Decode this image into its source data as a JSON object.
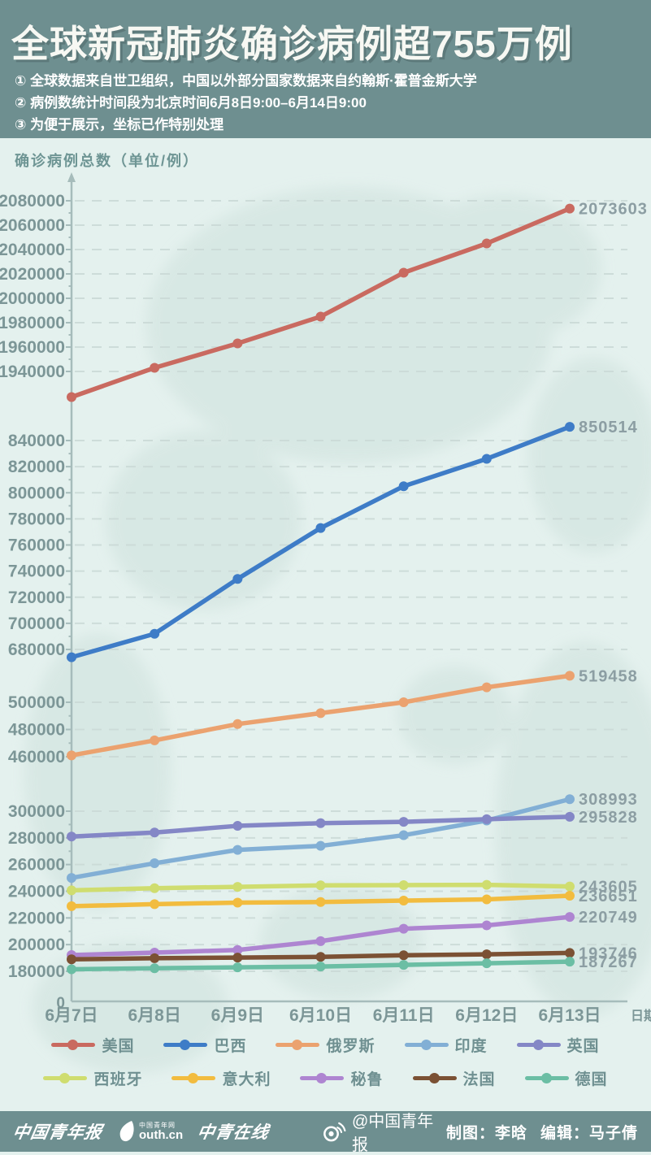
{
  "header": {
    "title": "全球新冠肺炎确诊病例超755万例",
    "notes": [
      "① 全球数据来自世卫组织，中国以外部分国家数据来自约翰斯·霍普金斯大学",
      "② 病例数统计时间段为北京时间6月8日9:00–6月14日9:00",
      "③ 为便于展示，坐标已作特别处理"
    ]
  },
  "chart": {
    "y_axis_title": "确诊病例总数（单位/例）",
    "x_axis_title": "日期",
    "origin_label": "0"
  },
  "chart_data": {
    "type": "line",
    "title": "全球新冠肺炎确诊病例超755万例",
    "x": [
      "6月7日",
      "6月8日",
      "6月9日",
      "6月10日",
      "6月11日",
      "6月12日",
      "6月13日"
    ],
    "xlabel": "日期",
    "ylabel": "确诊病例总数（单位/例）",
    "grid": true,
    "legend_position": "bottom",
    "y_axis_note": "broken compressed axis (坐标已作特别处理)",
    "y_ticks": [
      [
        2080000,
        2060000,
        2040000,
        2020000,
        2000000,
        1980000,
        1960000,
        1940000
      ],
      [
        840000,
        820000,
        800000,
        780000,
        760000,
        740000,
        720000,
        700000,
        680000
      ],
      [
        500000,
        480000,
        460000
      ],
      [
        300000,
        280000,
        260000,
        240000,
        220000,
        200000,
        180000
      ]
    ],
    "series": [
      {
        "name": "美国",
        "color": "#C96A60",
        "end_label": "2073603",
        "values": [
          1919000,
          1943000,
          1963000,
          1985000,
          2021000,
          2045000,
          2073603
        ]
      },
      {
        "name": "巴西",
        "color": "#3E7CC7",
        "end_label": "850514",
        "values": [
          674000,
          692000,
          734000,
          773000,
          805000,
          826000,
          850514
        ]
      },
      {
        "name": "俄罗斯",
        "color": "#EBA26F",
        "end_label": "519458",
        "values": [
          461000,
          472000,
          484000,
          492000,
          500000,
          511000,
          519458
        ]
      },
      {
        "name": "印度",
        "color": "#82AFD5",
        "end_label": "308993",
        "values": [
          250000,
          261000,
          271000,
          274000,
          282000,
          293000,
          308993
        ]
      },
      {
        "name": "英国",
        "color": "#8487C6",
        "end_label": "295828",
        "values": [
          281000,
          284000,
          289000,
          291000,
          292000,
          294000,
          295828
        ]
      },
      {
        "name": "西班牙",
        "color": "#CFDD6F",
        "end_label": "243605",
        "values": [
          240700,
          242300,
          243300,
          244400,
          244600,
          244800,
          243605
        ]
      },
      {
        "name": "意大利",
        "color": "#F2BC3F",
        "end_label": "236651",
        "values": [
          228800,
          230300,
          231500,
          231900,
          233000,
          233900,
          236651
        ]
      },
      {
        "name": "秘鲁",
        "color": "#AE85D1",
        "end_label": "220749",
        "values": [
          192200,
          194000,
          196000,
          202600,
          211900,
          214400,
          220749
        ]
      },
      {
        "name": "法国",
        "color": "#7B5134",
        "end_label": "193746",
        "values": [
          189000,
          189800,
          190300,
          190800,
          192000,
          192700,
          193746
        ]
      },
      {
        "name": "德国",
        "color": "#6BBEA4",
        "end_label": "187267",
        "values": [
          181500,
          182300,
          183000,
          183600,
          184800,
          186000,
          187267
        ]
      }
    ]
  },
  "footer": {
    "brand_cqyb": "中国青年报",
    "brand_youth_top": "中国青年网",
    "brand_youth_cn": "outh.cn",
    "brand_zqzx": "中青在线",
    "weibo_handle": "@中国青年报",
    "credit_maker": "制图：李晗",
    "credit_editor": "编辑：马子倩"
  }
}
